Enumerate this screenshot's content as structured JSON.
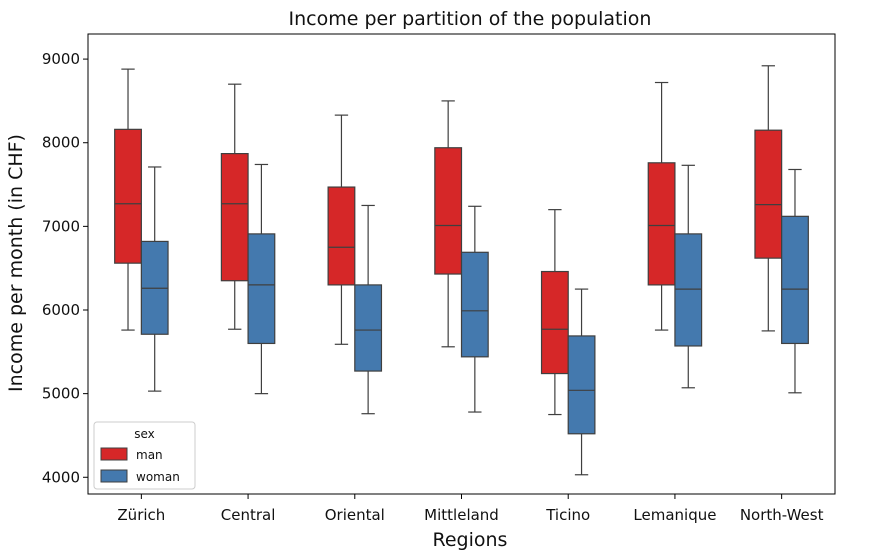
{
  "chart_data": {
    "type": "boxplot",
    "title": "Income per partition of the population",
    "xlabel": "Regions",
    "ylabel": "Income per month (in CHF)",
    "ylim": [
      3800,
      9300
    ],
    "yticks": [
      4000,
      5000,
      6000,
      7000,
      8000,
      9000
    ],
    "categories": [
      "Zürich",
      "Central",
      "Oriental",
      "Mittleland",
      "Ticino",
      "Lemanique",
      "North-West"
    ],
    "legend": {
      "title": "sex",
      "position": "lower-left"
    },
    "series": [
      {
        "name": "man",
        "color": "#d62728",
        "boxes": [
          {
            "whislo": 5760,
            "q1": 6560,
            "med": 7270,
            "q3": 8160,
            "whishi": 8880
          },
          {
            "whislo": 5770,
            "q1": 6350,
            "med": 7270,
            "q3": 7870,
            "whishi": 8700
          },
          {
            "whislo": 5590,
            "q1": 6300,
            "med": 6750,
            "q3": 7470,
            "whishi": 8330
          },
          {
            "whislo": 5560,
            "q1": 6430,
            "med": 7010,
            "q3": 7940,
            "whishi": 8500
          },
          {
            "whislo": 4750,
            "q1": 5240,
            "med": 5770,
            "q3": 6460,
            "whishi": 7200
          },
          {
            "whislo": 5760,
            "q1": 6300,
            "med": 7010,
            "q3": 7760,
            "whishi": 8720
          },
          {
            "whislo": 5750,
            "q1": 6620,
            "med": 7260,
            "q3": 8150,
            "whishi": 8920
          }
        ]
      },
      {
        "name": "woman",
        "color": "#4479ae",
        "boxes": [
          {
            "whislo": 5030,
            "q1": 5710,
            "med": 6260,
            "q3": 6820,
            "whishi": 7710
          },
          {
            "whislo": 5000,
            "q1": 5600,
            "med": 6300,
            "q3": 6910,
            "whishi": 7740
          },
          {
            "whislo": 4760,
            "q1": 5270,
            "med": 5760,
            "q3": 6300,
            "whishi": 7250
          },
          {
            "whislo": 4780,
            "q1": 5440,
            "med": 5990,
            "q3": 6690,
            "whishi": 7240
          },
          {
            "whislo": 4030,
            "q1": 4520,
            "med": 5040,
            "q3": 5690,
            "whishi": 6250
          },
          {
            "whislo": 5070,
            "q1": 5570,
            "med": 6250,
            "q3": 6910,
            "whishi": 7730
          },
          {
            "whislo": 5010,
            "q1": 5600,
            "med": 6250,
            "q3": 7120,
            "whishi": 7680
          }
        ]
      }
    ]
  }
}
